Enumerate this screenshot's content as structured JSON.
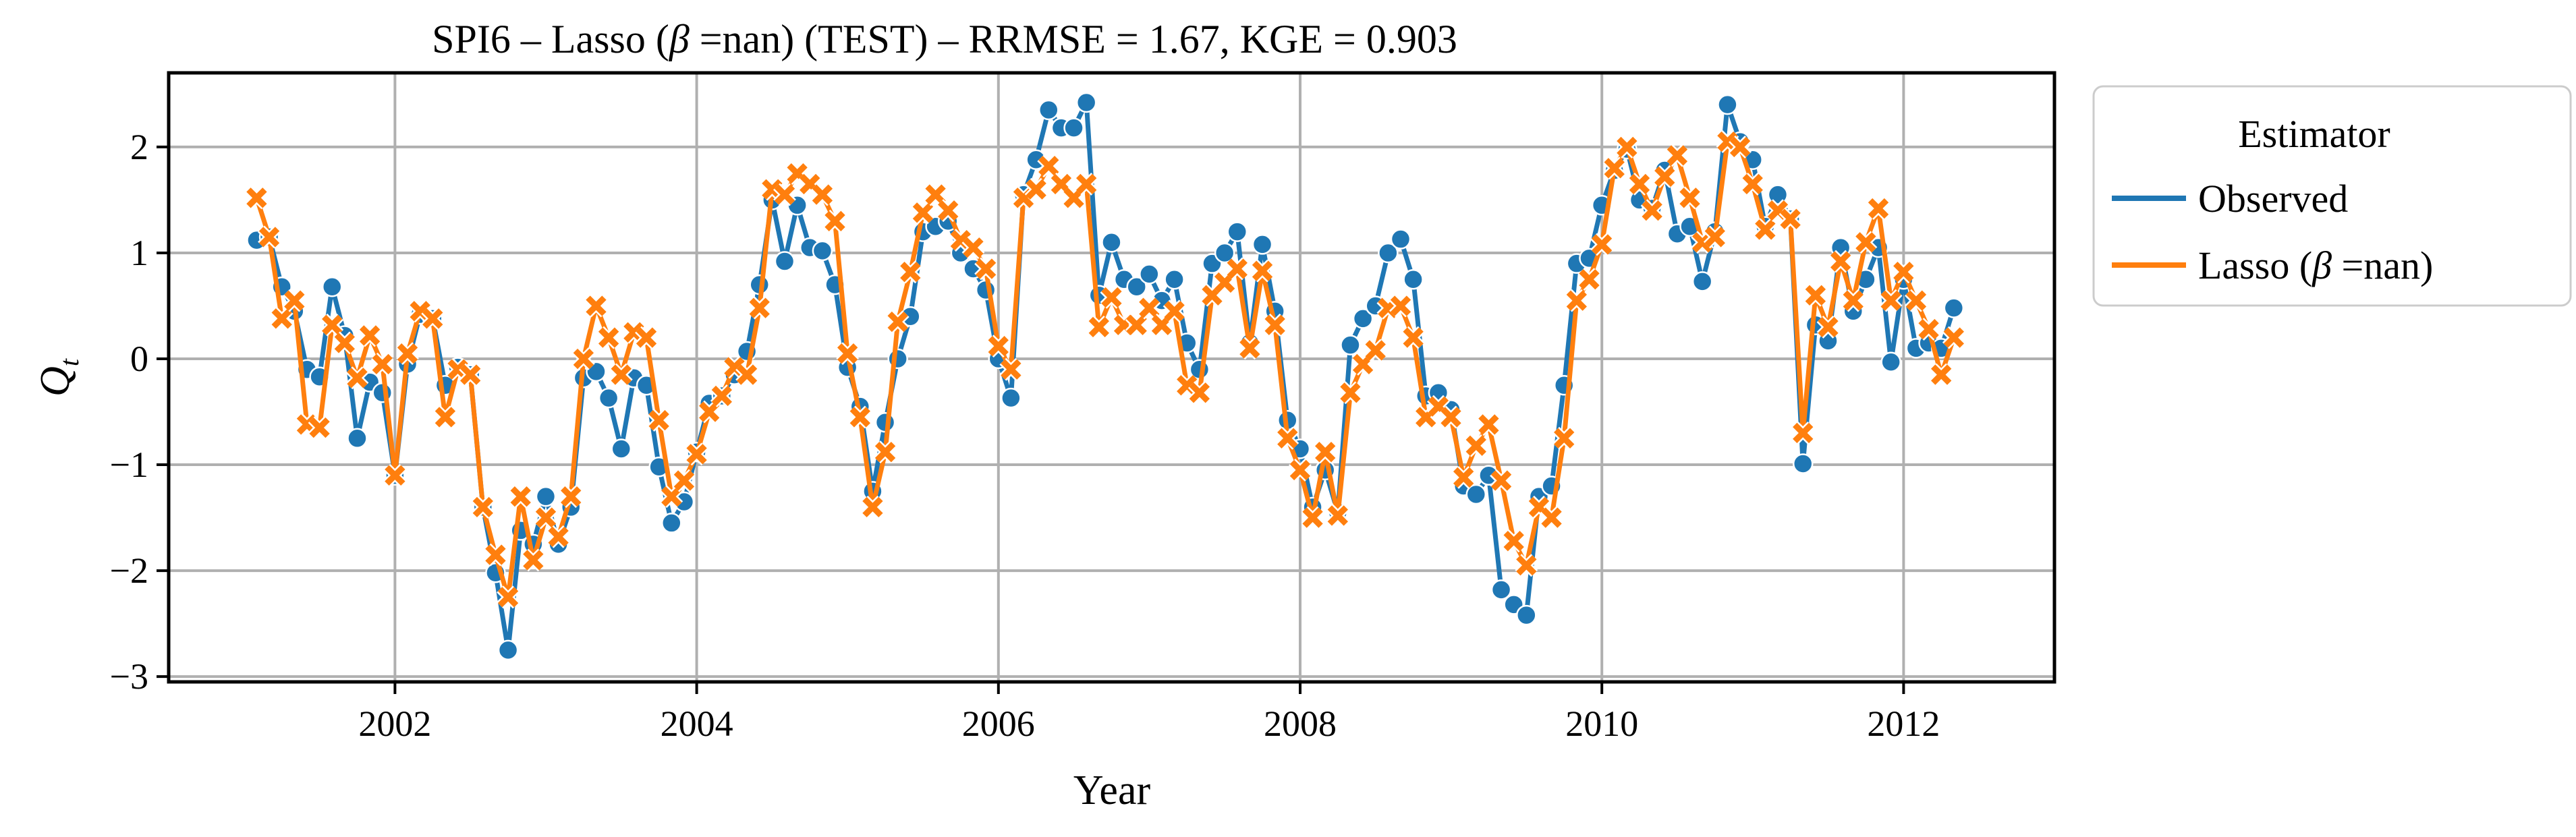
{
  "chart_data": {
    "type": "line",
    "title": "SPI6 – Lasso (β =nan) (TEST) – RRMSE = 1.67, KGE = 0.903",
    "title_parts": {
      "prefix": "SPI6 – Lasso (",
      "beta": "β",
      "suffix": " =nan) (TEST) – RRMSE = 1.67, KGE = 0.903"
    },
    "xlabel": "Year",
    "ylabel": "Q",
    "ylabel_sub": "t",
    "xlim": [
      2000.5,
      2013.0
    ],
    "ylim": [
      -3.05,
      2.7
    ],
    "x_ticks": [
      {
        "value": 2002,
        "label": "2002"
      },
      {
        "value": 2004,
        "label": "2004"
      },
      {
        "value": 2006,
        "label": "2006"
      },
      {
        "value": 2008,
        "label": "2008"
      },
      {
        "value": 2010,
        "label": "2010"
      },
      {
        "value": 2012,
        "label": "2012"
      }
    ],
    "y_ticks": [
      {
        "value": 2,
        "label": "2"
      },
      {
        "value": 1,
        "label": "1"
      },
      {
        "value": 0,
        "label": "0"
      },
      {
        "value": -1,
        "label": "−1"
      },
      {
        "value": -2,
        "label": "−2"
      },
      {
        "value": -3,
        "label": "−3"
      }
    ],
    "grid": true,
    "legend": {
      "title": "Estimator",
      "placement": "outside-right",
      "entries": [
        {
          "label": "Observed",
          "label_prefix": "Observed",
          "beta": "",
          "label_suffix": ""
        },
        {
          "label": "Lasso (β =nan)",
          "label_prefix": "Lasso (",
          "beta": "β",
          "label_suffix": " =nan)"
        }
      ]
    },
    "x_start": 2001.0833,
    "x_step": 0.08333,
    "series": [
      {
        "name": "Observed",
        "color": "#1f77b4",
        "marker": "circle",
        "values": [
          1.12,
          1.15,
          0.68,
          0.45,
          -0.1,
          -0.17,
          0.68,
          0.22,
          -0.75,
          -0.22,
          -0.32,
          -1.1,
          -0.05,
          0.42,
          0.38,
          -0.25,
          -0.08,
          -0.15,
          -1.4,
          -2.02,
          -2.75,
          -1.62,
          -1.75,
          -1.3,
          -1.75,
          -1.4,
          -0.18,
          -0.12,
          -0.37,
          -0.85,
          -0.18,
          -0.25,
          -1.02,
          -1.55,
          -1.35,
          -0.88,
          -0.42,
          -0.35,
          -0.15,
          0.07,
          0.7,
          1.5,
          0.92,
          1.45,
          1.05,
          1.02,
          0.7,
          -0.08,
          -0.45,
          -1.25,
          -0.6,
          0.0,
          0.4,
          1.2,
          1.25,
          1.3,
          1.0,
          0.85,
          0.65,
          0.0,
          -0.37,
          1.55,
          1.88,
          2.35,
          2.18,
          2.18,
          2.42,
          0.6,
          1.1,
          0.75,
          0.68,
          0.8,
          0.55,
          0.75,
          0.15,
          -0.1,
          0.9,
          1.0,
          1.2,
          0.15,
          1.08,
          0.45,
          -0.58,
          -0.85,
          -1.4,
          -1.05,
          -1.45,
          0.13,
          0.38,
          0.5,
          1.0,
          1.13,
          0.75,
          -0.35,
          -0.32,
          -0.48,
          -1.2,
          -1.28,
          -1.1,
          -2.18,
          -2.32,
          -2.42,
          -1.3,
          -1.2,
          -0.25,
          0.9,
          0.95,
          1.45,
          1.78,
          1.98,
          1.5,
          1.42,
          1.78,
          1.18,
          1.25,
          0.73,
          1.2,
          2.4,
          2.05,
          1.88,
          1.25,
          1.55,
          1.32,
          -0.99,
          0.32,
          0.17,
          1.05,
          0.45,
          0.75,
          1.05,
          -0.03,
          0.75,
          0.1,
          0.15,
          0.1,
          0.48
        ]
      },
      {
        "name": "Lasso (β =nan)",
        "color": "#ff7f0e",
        "marker": "x",
        "values": [
          1.52,
          1.15,
          0.38,
          0.55,
          -0.62,
          -0.65,
          0.32,
          0.15,
          -0.18,
          0.22,
          -0.05,
          -1.1,
          0.05,
          0.45,
          0.38,
          -0.55,
          -0.1,
          -0.15,
          -1.4,
          -1.85,
          -2.25,
          -1.3,
          -1.9,
          -1.5,
          -1.68,
          -1.3,
          0.0,
          0.5,
          0.2,
          -0.15,
          0.25,
          0.2,
          -0.58,
          -1.3,
          -1.15,
          -0.9,
          -0.5,
          -0.35,
          -0.08,
          -0.15,
          0.48,
          1.6,
          1.55,
          1.75,
          1.65,
          1.55,
          1.3,
          0.05,
          -0.55,
          -1.4,
          -0.88,
          0.35,
          0.82,
          1.38,
          1.55,
          1.4,
          1.12,
          1.05,
          0.85,
          0.12,
          -0.1,
          1.52,
          1.6,
          1.82,
          1.65,
          1.52,
          1.65,
          0.3,
          0.58,
          0.32,
          0.32,
          0.48,
          0.32,
          0.45,
          -0.25,
          -0.32,
          0.6,
          0.72,
          0.85,
          0.1,
          0.83,
          0.32,
          -0.75,
          -1.05,
          -1.5,
          -0.88,
          -1.48,
          -0.32,
          -0.05,
          0.08,
          0.48,
          0.5,
          0.2,
          -0.55,
          -0.45,
          -0.55,
          -1.12,
          -0.82,
          -0.62,
          -1.15,
          -1.72,
          -1.95,
          -1.4,
          -1.5,
          -0.75,
          0.55,
          0.75,
          1.08,
          1.8,
          2.0,
          1.65,
          1.4,
          1.72,
          1.92,
          1.52,
          1.1,
          1.15,
          2.05,
          2.0,
          1.65,
          1.22,
          1.4,
          1.32,
          -0.7,
          0.6,
          0.3,
          0.92,
          0.55,
          1.1,
          1.42,
          0.55,
          0.82,
          0.55,
          0.28,
          -0.15,
          0.2
        ]
      }
    ]
  }
}
